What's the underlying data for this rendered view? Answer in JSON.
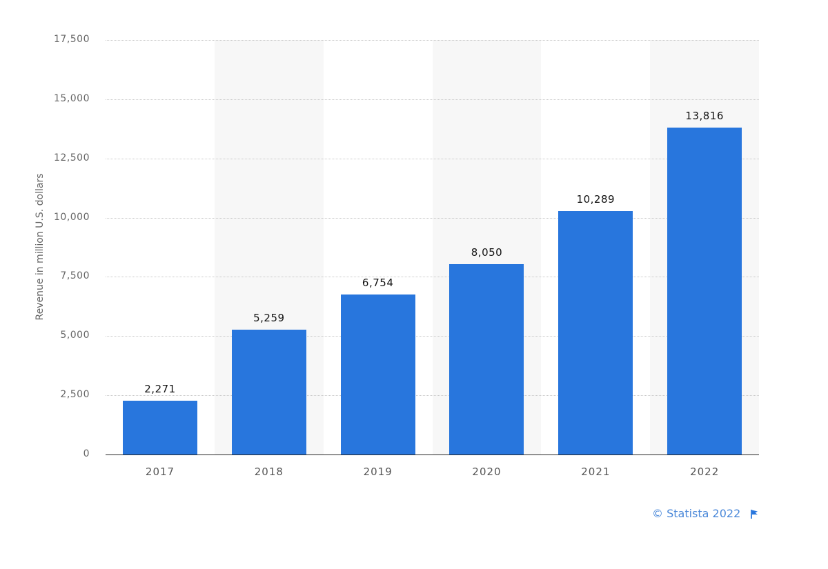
{
  "chart_data": {
    "type": "bar",
    "title": "",
    "xlabel": "",
    "ylabel": "Revenue in million U.S. dollars",
    "categories": [
      "2017",
      "2018",
      "2019",
      "2020",
      "2021",
      "2022"
    ],
    "values": [
      2271,
      5259,
      6754,
      8050,
      10289,
      13816
    ],
    "value_labels": [
      "2,271",
      "5,259",
      "6,754",
      "8,050",
      "10,289",
      "13,816"
    ],
    "ylim": [
      0,
      17500
    ],
    "yticks": [
      0,
      2500,
      5000,
      7500,
      10000,
      12500,
      15000,
      17500
    ],
    "ytick_labels": [
      "0",
      "2,500",
      "5,000",
      "7,500",
      "10,000",
      "12,500",
      "15,000",
      "17,500"
    ],
    "grid": true,
    "legend": null,
    "bar_color": "#2876dd"
  },
  "credit": {
    "text": "© Statista 2022",
    "icon": "flag-icon"
  }
}
